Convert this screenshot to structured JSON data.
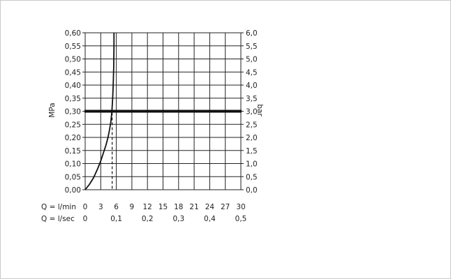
{
  "chart_data": {
    "type": "line",
    "x_axis_primary": {
      "label": "Q = l/min",
      "ticks": [
        "0",
        "3",
        "6",
        "9",
        "12",
        "15",
        "18",
        "21",
        "24",
        "27",
        "30"
      ],
      "range": [
        0,
        30
      ]
    },
    "x_axis_secondary": {
      "label": "Q = l/sec",
      "ticks": [
        "0",
        "0,1",
        "0,2",
        "0,3",
        "0,4",
        "0,5"
      ],
      "range": [
        0,
        0.5
      ]
    },
    "y_axis_left": {
      "label": "MPa",
      "ticks": [
        "0,00",
        "0,05",
        "0,10",
        "0,15",
        "0,20",
        "0,25",
        "0,30",
        "0,35",
        "0,40",
        "0,45",
        "0,50",
        "0,55",
        "0,60"
      ],
      "range": [
        0,
        0.6
      ]
    },
    "y_axis_right": {
      "label": "bar",
      "ticks": [
        "0,0",
        "0,5",
        "1,0",
        "1,5",
        "2,0",
        "2,5",
        "3,0",
        "3,5",
        "4,0",
        "4,5",
        "5,0",
        "5,5",
        "6,0"
      ],
      "range": [
        0,
        6
      ]
    },
    "grid": true,
    "reference_line": {
      "y": 0.3
    },
    "marker_line": {
      "x": 5.2,
      "style": "dashed"
    },
    "series": [
      {
        "x": [
          0,
          0.8,
          1.6,
          2.4,
          3.0,
          3.5,
          4.0,
          4.4,
          4.7,
          4.95,
          5.15,
          5.3,
          5.4,
          5.5,
          5.55,
          5.55
        ],
        "y": [
          0,
          0.02,
          0.045,
          0.08,
          0.11,
          0.14,
          0.17,
          0.2,
          0.23,
          0.26,
          0.3,
          0.35,
          0.4,
          0.47,
          0.55,
          0.6
        ]
      }
    ]
  }
}
